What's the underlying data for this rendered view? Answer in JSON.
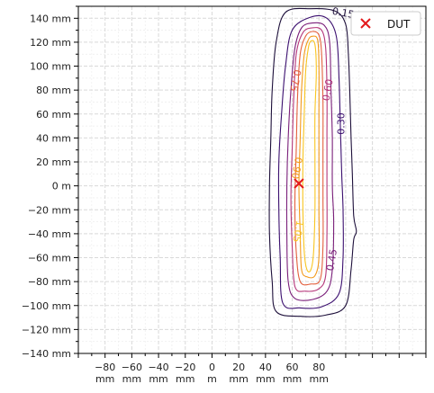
{
  "chart_data": {
    "type": "contour",
    "xlim": [
      -100,
      160
    ],
    "ylim": [
      -140,
      150
    ],
    "grid": true,
    "legend_placement": "top-right",
    "x_ticks": [
      {
        "value": -80,
        "line1": "−80",
        "line2": "mm"
      },
      {
        "value": -60,
        "line1": "−60",
        "line2": "mm"
      },
      {
        "value": -40,
        "line1": "−40",
        "line2": "mm"
      },
      {
        "value": -20,
        "line1": "−20",
        "line2": "mm"
      },
      {
        "value": 0,
        "line1": "0",
        "line2": "m"
      },
      {
        "value": 20,
        "line1": "20",
        "line2": "mm"
      },
      {
        "value": 40,
        "line1": "40",
        "line2": "mm"
      },
      {
        "value": 60,
        "line1": "60",
        "line2": "mm"
      },
      {
        "value": 80,
        "line1": "80",
        "line2": "mm"
      }
    ],
    "y_ticks": [
      {
        "value": 140,
        "label": "140 mm"
      },
      {
        "value": 120,
        "label": "120 mm"
      },
      {
        "value": 100,
        "label": "100 mm"
      },
      {
        "value": 80,
        "label": "80 mm"
      },
      {
        "value": 60,
        "label": "60 mm"
      },
      {
        "value": 40,
        "label": "40 mm"
      },
      {
        "value": 20,
        "label": "20 mm"
      },
      {
        "value": 0,
        "label": "0 m"
      },
      {
        "value": -20,
        "label": "−20 mm"
      },
      {
        "value": -40,
        "label": "−40 mm"
      },
      {
        "value": -60,
        "label": "−60 mm"
      },
      {
        "value": -80,
        "label": "−80 mm"
      },
      {
        "value": -100,
        "label": "−100 mm"
      },
      {
        "value": -120,
        "label": "−120 mm"
      },
      {
        "value": -140,
        "label": "−140 mm"
      }
    ],
    "contours": [
      {
        "level": "0.15",
        "color": "#1d0f3a",
        "path": [
          [
            74,
            148
          ],
          [
            92,
            146
          ],
          [
            100,
            135
          ],
          [
            102,
            110
          ],
          [
            103,
            80
          ],
          [
            104,
            40
          ],
          [
            105,
            10
          ],
          [
            106,
            -25
          ],
          [
            108,
            -38
          ],
          [
            106,
            -45
          ],
          [
            104,
            -70
          ],
          [
            100,
            -100
          ],
          [
            85,
            -108
          ],
          [
            66,
            -109
          ],
          [
            48,
            -105
          ],
          [
            45,
            -80
          ],
          [
            43,
            -40
          ],
          [
            43,
            0
          ],
          [
            44,
            40
          ],
          [
            45,
            80
          ],
          [
            48,
            120
          ],
          [
            55,
            145
          ]
        ],
        "labels": [
          {
            "text": "0.15",
            "x": 98,
            "y": 144,
            "rotate": 10
          }
        ]
      },
      {
        "level": "0.30",
        "color": "#3b0f6f",
        "path": [
          [
            74,
            141
          ],
          [
            86,
            140
          ],
          [
            93,
            125
          ],
          [
            95,
            90
          ],
          [
            96,
            50
          ],
          [
            97,
            10
          ],
          [
            98,
            -20
          ],
          [
            98,
            -60
          ],
          [
            95,
            -90
          ],
          [
            82,
            -101
          ],
          [
            66,
            -102
          ],
          [
            53,
            -98
          ],
          [
            51,
            -60
          ],
          [
            50,
            -20
          ],
          [
            50,
            20
          ],
          [
            52,
            60
          ],
          [
            55,
            100
          ],
          [
            60,
            130
          ]
        ],
        "labels": [
          {
            "text": "0.30",
            "x": 97,
            "y": 52,
            "rotate": -90
          }
        ]
      },
      {
        "level": "0.45",
        "color": "#7a1f7a",
        "path": [
          [
            75,
            136
          ],
          [
            84,
            134
          ],
          [
            88,
            120
          ],
          [
            89,
            80
          ],
          [
            90,
            40
          ],
          [
            90,
            0
          ],
          [
            91,
            -30
          ],
          [
            90,
            -70
          ],
          [
            86,
            -88
          ],
          [
            75,
            -95
          ],
          [
            62,
            -94
          ],
          [
            57,
            -80
          ],
          [
            56,
            -40
          ],
          [
            56,
            0
          ],
          [
            57,
            40
          ],
          [
            59,
            80
          ],
          [
            62,
            115
          ],
          [
            67,
            132
          ]
        ],
        "labels": [
          {
            "text": "0.45",
            "x": 90,
            "y": -62,
            "rotate": -80
          }
        ]
      },
      {
        "level": "0.60",
        "color": "#b5367a",
        "path": [
          [
            75,
            132
          ],
          [
            82,
            130
          ],
          [
            85,
            115
          ],
          [
            86,
            80
          ],
          [
            86,
            40
          ],
          [
            86,
            0
          ],
          [
            86,
            -40
          ],
          [
            85,
            -75
          ],
          [
            80,
            -86
          ],
          [
            70,
            -88
          ],
          [
            62,
            -84
          ],
          [
            60,
            -50
          ],
          [
            59,
            -10
          ],
          [
            60,
            30
          ],
          [
            61,
            70
          ],
          [
            63,
            110
          ],
          [
            68,
            128
          ]
        ],
        "labels": [
          {
            "text": "0.60",
            "x": 87,
            "y": 80,
            "rotate": -80
          }
        ]
      },
      {
        "level": "0.75",
        "color": "#e3603d",
        "path": [
          [
            75,
            129
          ],
          [
            80,
            126
          ],
          [
            82,
            110
          ],
          [
            83,
            70
          ],
          [
            83,
            30
          ],
          [
            83,
            -10
          ],
          [
            83,
            -50
          ],
          [
            81,
            -78
          ],
          [
            74,
            -82
          ],
          [
            66,
            -80
          ],
          [
            63,
            -55
          ],
          [
            62,
            -15
          ],
          [
            63,
            30
          ],
          [
            64,
            75
          ],
          [
            66,
            110
          ],
          [
            70,
            125
          ]
        ],
        "labels": [
          {
            "text": "0.75",
            "x": 62,
            "y": 88,
            "rotate": 100
          }
        ]
      },
      {
        "level": "0.90",
        "color": "#f39a1a",
        "path": [
          [
            75,
            125
          ],
          [
            79,
            122
          ],
          [
            80,
            100
          ],
          [
            80,
            60
          ],
          [
            80,
            20
          ],
          [
            80,
            -20
          ],
          [
            80,
            -60
          ],
          [
            77,
            -75
          ],
          [
            71,
            -76
          ],
          [
            67,
            -70
          ],
          [
            66,
            -40
          ],
          [
            65,
            0
          ],
          [
            66,
            40
          ],
          [
            67,
            80
          ],
          [
            69,
            110
          ],
          [
            72,
            122
          ]
        ],
        "labels": [
          {
            "text": "0.90",
            "x": 63,
            "y": 15,
            "rotate": 100
          }
        ]
      },
      {
        "level": "1.05",
        "color": "#f8c520",
        "path": [
          [
            74,
            121
          ],
          [
            77,
            118
          ],
          [
            78,
            95
          ],
          [
            77,
            60
          ],
          [
            77,
            20
          ],
          [
            77,
            -20
          ],
          [
            76,
            -55
          ],
          [
            74,
            -70
          ],
          [
            71,
            -70
          ],
          [
            69,
            -55
          ],
          [
            68,
            -20
          ],
          [
            68,
            20
          ],
          [
            69,
            60
          ],
          [
            70,
            95
          ],
          [
            72,
            115
          ]
        ],
        "labels": [
          {
            "text": "1.05",
            "x": 64,
            "y": -38,
            "rotate": 100
          }
        ]
      }
    ],
    "markers": [
      {
        "name": "DUT",
        "x": 65,
        "y": 2,
        "color": "#e31a1c",
        "symbol": "x"
      }
    ],
    "legend": [
      {
        "label": "DUT",
        "color": "#e31a1c",
        "symbol": "x"
      }
    ]
  }
}
